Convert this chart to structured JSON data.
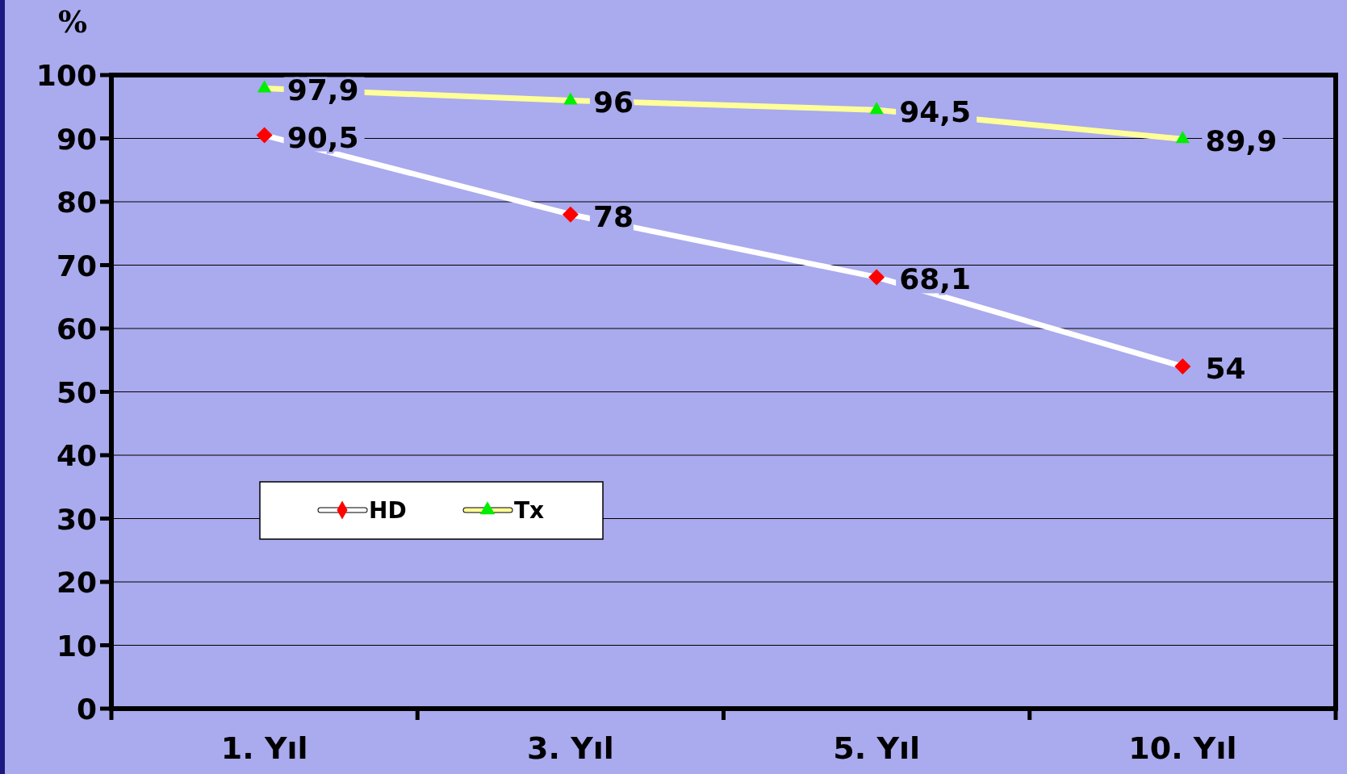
{
  "chart_data": {
    "type": "line",
    "ylabel": "%",
    "categories": [
      "1. Yıl",
      "3. Yıl",
      "5. Yıl",
      "10. Yıl"
    ],
    "series": [
      {
        "name": "HD",
        "color": "#ffffff",
        "marker": "diamond",
        "values": [
          90.5,
          78,
          68.1,
          54
        ],
        "value_labels": [
          "90,5",
          "78",
          "68,1",
          "54"
        ]
      },
      {
        "name": "Tx",
        "color": "#ffff99",
        "marker": "triangle",
        "values": [
          97.9,
          96,
          94.5,
          89.9
        ],
        "value_labels": [
          "97,9",
          "96",
          "94,5",
          "89,9"
        ]
      }
    ],
    "ylim": [
      0,
      100
    ],
    "yticks": [
      0,
      10,
      20,
      30,
      40,
      50,
      60,
      70,
      80,
      90,
      100
    ],
    "grid": "y",
    "legend": "left",
    "line_style": "solid"
  }
}
